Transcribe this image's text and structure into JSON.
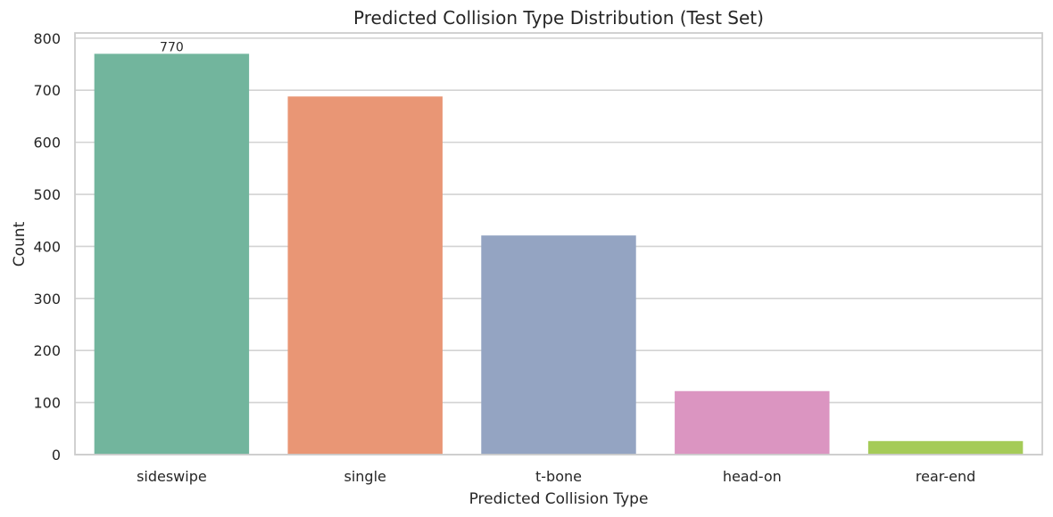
{
  "chart_data": {
    "type": "bar",
    "title": "Predicted Collision Type Distribution (Test Set)",
    "xlabel": "Predicted Collision Type",
    "ylabel": "Count",
    "categories": [
      "sideswipe",
      "single",
      "t-bone",
      "head-on",
      "rear-end"
    ],
    "values": [
      770,
      688,
      421,
      122,
      26
    ],
    "colors": [
      "#72b59d",
      "#e99675",
      "#94a4c2",
      "#db95c1",
      "#a5cb58"
    ],
    "data_labels": [
      {
        "category": "sideswipe",
        "text": "770"
      }
    ],
    "ylim": [
      0,
      810
    ],
    "yticks": [
      0,
      100,
      200,
      300,
      400,
      500,
      600,
      700,
      800
    ],
    "grid": "horizontal",
    "legend": "none"
  }
}
